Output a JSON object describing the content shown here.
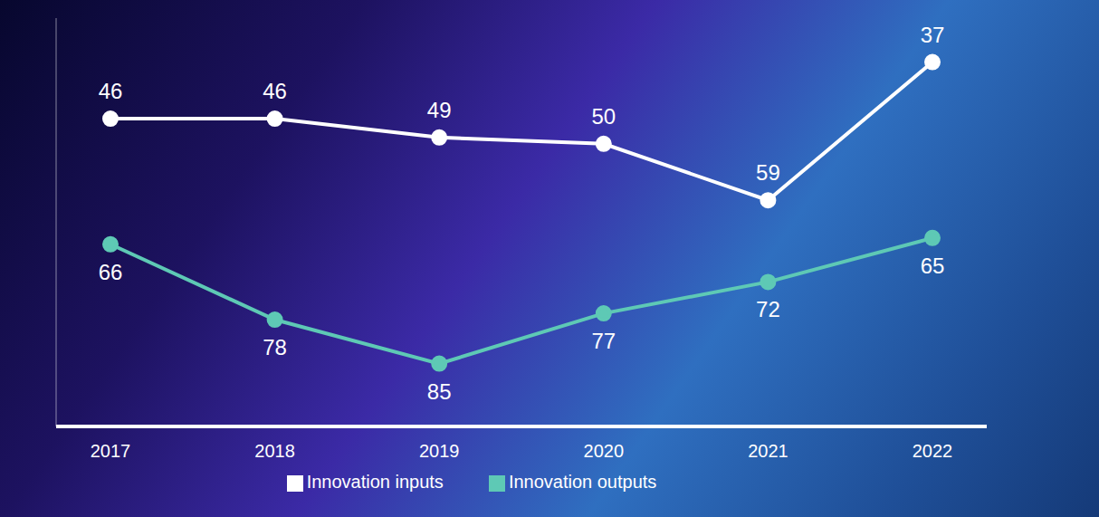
{
  "chart_data": {
    "type": "line",
    "categories": [
      "2017",
      "2018",
      "2019",
      "2020",
      "2021",
      "2022"
    ],
    "series": [
      {
        "name": "Innovation inputs",
        "color": "#ffffff",
        "values": [
          46,
          46,
          49,
          50,
          59,
          37
        ],
        "marker": "circle"
      },
      {
        "name": "Innovation outputs",
        "color": "#5ec9b5",
        "values": [
          66,
          78,
          85,
          77,
          72,
          65
        ],
        "marker": "circle"
      }
    ],
    "ylim": [
      30,
      95
    ],
    "yticks": [
      30,
      95
    ],
    "tick_labels": "x",
    "data_labels": true,
    "legend": "bottom",
    "grid": false
  }
}
